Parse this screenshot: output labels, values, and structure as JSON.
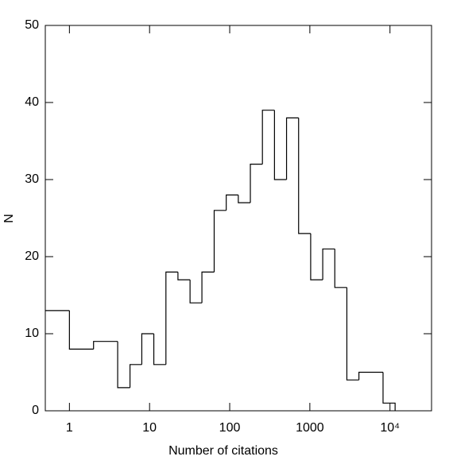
{
  "chart_data": {
    "type": "histogram",
    "x_label": "Number of citations",
    "y_label": "N",
    "x_log": true,
    "color": "#000000",
    "bins": [
      0.5,
      1,
      2,
      4,
      5.7,
      8,
      11.3,
      16,
      22.6,
      32,
      45,
      64,
      90.5,
      128,
      181,
      256,
      362,
      512,
      724,
      1024,
      1448,
      2048,
      2896,
      4096,
      8192,
      11585
    ],
    "values": [
      13,
      8,
      9,
      3,
      6,
      10,
      6,
      18,
      17,
      14,
      18,
      26,
      28,
      27,
      32,
      39,
      30,
      38,
      23,
      17,
      21,
      16,
      4,
      5,
      1
    ],
    "xlim": [
      0.5,
      33000
    ],
    "xticks": [
      1,
      10,
      100,
      1000,
      {
        "value": 10000,
        "label": "10⁴"
      }
    ],
    "ylim": [
      0,
      50
    ],
    "yticks": [
      0,
      10,
      20,
      30,
      40,
      50
    ]
  }
}
